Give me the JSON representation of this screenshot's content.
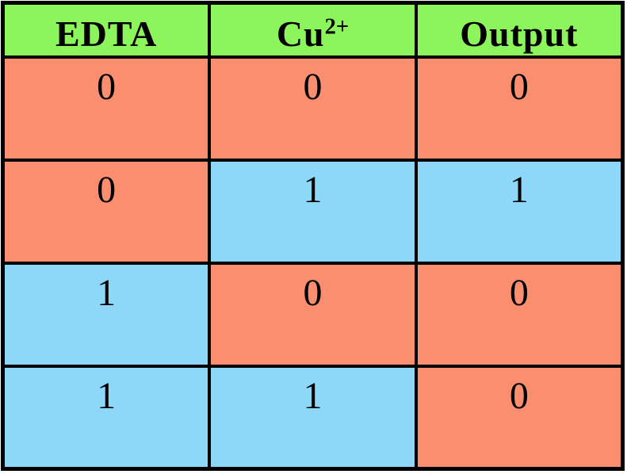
{
  "table": {
    "columns": [
      {
        "label": "EDTA",
        "superscript": ""
      },
      {
        "label": "Cu",
        "superscript": "2+"
      },
      {
        "label": "Output",
        "superscript": ""
      }
    ],
    "rows": [
      {
        "cells": [
          {
            "value": "0"
          },
          {
            "value": "0"
          },
          {
            "value": "0"
          }
        ]
      },
      {
        "cells": [
          {
            "value": "0"
          },
          {
            "value": "1"
          },
          {
            "value": "1"
          }
        ]
      },
      {
        "cells": [
          {
            "value": "1"
          },
          {
            "value": "0"
          },
          {
            "value": "0"
          }
        ]
      },
      {
        "cells": [
          {
            "value": "1"
          },
          {
            "value": "1"
          },
          {
            "value": "0"
          }
        ]
      }
    ]
  },
  "colors": {
    "header_bg": "#8cf55c",
    "zero_bg": "#fa8e6e",
    "one_bg": "#8dd7f8",
    "border": "#000000",
    "text": "#000000"
  },
  "chart_data": {
    "type": "table",
    "title": "",
    "columns": [
      "EDTA",
      "Cu2+",
      "Output"
    ],
    "rows": [
      [
        0,
        0,
        0
      ],
      [
        0,
        1,
        1
      ],
      [
        1,
        0,
        0
      ],
      [
        1,
        1,
        0
      ]
    ],
    "header_bg": "#8cf55c",
    "cell_bg_by_value": {
      "0": "#fa8e6e",
      "1": "#8dd7f8"
    },
    "notes_visible_on_screen": ""
  }
}
